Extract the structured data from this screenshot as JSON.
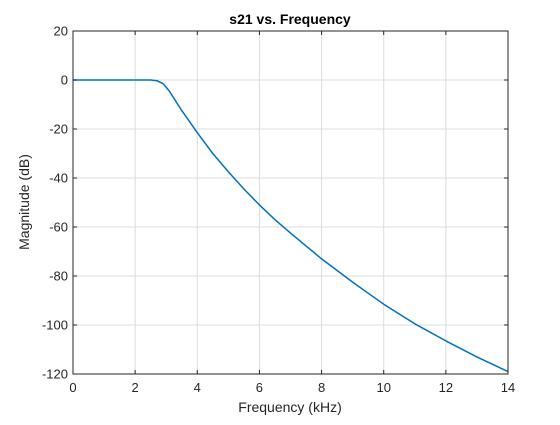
{
  "chart_data": {
    "type": "line",
    "title": "s21 vs. Frequency",
    "xlabel": "Frequency (kHz)",
    "ylabel": "Magnitude (dB)",
    "xlim": [
      0,
      14
    ],
    "ylim": [
      -120,
      20
    ],
    "xticks": [
      0,
      2,
      4,
      6,
      8,
      10,
      12,
      14
    ],
    "yticks": [
      20,
      0,
      -20,
      -40,
      -60,
      -80,
      -100,
      -120
    ],
    "grid": true,
    "legend": "none",
    "series": [
      {
        "color": "#0072bd",
        "x": [
          0,
          0.5,
          1.0,
          1.5,
          2.0,
          2.5,
          2.7,
          2.9,
          3.1,
          3.3,
          3.5,
          3.75,
          4.0,
          4.5,
          5.0,
          5.5,
          6.0,
          6.5,
          7.0,
          8.0,
          9.0,
          10.0,
          11.0,
          12.0,
          13.0,
          14.0
        ],
        "y": [
          0,
          0,
          0,
          0,
          0,
          0,
          -0.3,
          -1.5,
          -4.5,
          -8.5,
          -12.5,
          -17,
          -21.5,
          -30,
          -37.5,
          -44.5,
          -51,
          -57,
          -62.5,
          -73,
          -82.5,
          -91.5,
          -99.5,
          -106.5,
          -113,
          -119
        ]
      }
    ]
  }
}
